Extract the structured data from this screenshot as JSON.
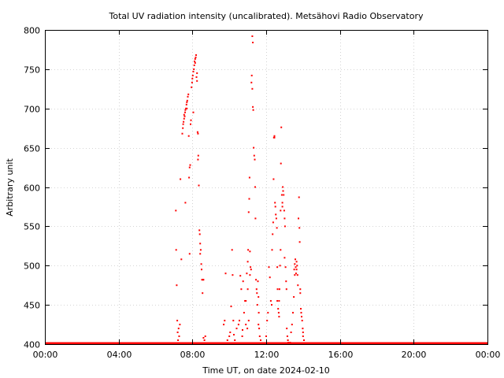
{
  "chart_data": {
    "type": "scatter",
    "title": "Total UV radiation intensity (uncalibrated). Metsähovi Radio Observatory",
    "xlabel": "Time UT, on date 2024-02-10",
    "ylabel": "Arbitrary unit",
    "xlim": [
      0,
      24
    ],
    "ylim": [
      400,
      800
    ],
    "xticks": [
      0,
      4,
      8,
      12,
      16,
      20,
      24
    ],
    "xtick_labels": [
      "00:00",
      "04:00",
      "08:00",
      "12:00",
      "16:00",
      "20:00",
      "00:00"
    ],
    "yticks": [
      400,
      450,
      500,
      550,
      600,
      650,
      700,
      750,
      800
    ],
    "ytick_labels": [
      "400",
      "450",
      "500",
      "550",
      "600",
      "650",
      "700",
      "750",
      "800"
    ],
    "grid": true,
    "color": "#ff0000",
    "baseline": {
      "value": 400,
      "x_range": [
        0,
        24
      ]
    },
    "points": [
      [
        7.1,
        570
      ],
      [
        7.12,
        520
      ],
      [
        7.15,
        475
      ],
      [
        7.18,
        430
      ],
      [
        7.2,
        415
      ],
      [
        7.22,
        405
      ],
      [
        7.25,
        420
      ],
      [
        7.28,
        410
      ],
      [
        7.32,
        425
      ],
      [
        7.35,
        610
      ],
      [
        7.4,
        508
      ],
      [
        7.45,
        668
      ],
      [
        7.48,
        675
      ],
      [
        7.5,
        680
      ],
      [
        7.52,
        683
      ],
      [
        7.55,
        687
      ],
      [
        7.58,
        690
      ],
      [
        7.6,
        695
      ],
      [
        7.62,
        698
      ],
      [
        7.65,
        700
      ],
      [
        7.68,
        705
      ],
      [
        7.7,
        708
      ],
      [
        7.72,
        710
      ],
      [
        7.75,
        715
      ],
      [
        7.78,
        718
      ],
      [
        7.8,
        665
      ],
      [
        7.82,
        612
      ],
      [
        7.85,
        625
      ],
      [
        7.88,
        628
      ],
      [
        7.9,
        680
      ],
      [
        7.92,
        685
      ],
      [
        7.95,
        727
      ],
      [
        7.98,
        733
      ],
      [
        8.0,
        738
      ],
      [
        8.02,
        742
      ],
      [
        8.05,
        747
      ],
      [
        8.08,
        750
      ],
      [
        8.1,
        755
      ],
      [
        8.12,
        760
      ],
      [
        8.15,
        763
      ],
      [
        8.18,
        765
      ],
      [
        8.2,
        768
      ],
      [
        8.22,
        740
      ],
      [
        8.25,
        735
      ],
      [
        8.28,
        670
      ],
      [
        8.3,
        635
      ],
      [
        8.32,
        640
      ],
      [
        8.35,
        602
      ],
      [
        8.38,
        545
      ],
      [
        8.4,
        540
      ],
      [
        8.42,
        528
      ],
      [
        8.45,
        520
      ],
      [
        8.48,
        502
      ],
      [
        8.5,
        495
      ],
      [
        8.52,
        482
      ],
      [
        8.55,
        465
      ],
      [
        8.58,
        482
      ],
      [
        8.6,
        482
      ],
      [
        8.65,
        405
      ],
      [
        8.7,
        410
      ],
      [
        7.7,
        700
      ],
      [
        7.85,
        515
      ],
      [
        7.55,
        692
      ],
      [
        7.62,
        580
      ],
      [
        8.05,
        695
      ],
      [
        8.15,
        758
      ],
      [
        8.25,
        745
      ],
      [
        8.3,
        668
      ],
      [
        8.42,
        515
      ],
      [
        8.6,
        408
      ],
      [
        9.7,
        425
      ],
      [
        9.75,
        430
      ],
      [
        9.8,
        490
      ],
      [
        9.9,
        405
      ],
      [
        10.0,
        410
      ],
      [
        10.05,
        415
      ],
      [
        10.1,
        448
      ],
      [
        10.15,
        520
      ],
      [
        10.18,
        488
      ],
      [
        10.22,
        430
      ],
      [
        10.25,
        412
      ],
      [
        10.3,
        405
      ],
      [
        10.4,
        420
      ],
      [
        10.5,
        425
      ],
      [
        10.55,
        430
      ],
      [
        10.6,
        487
      ],
      [
        10.65,
        470
      ],
      [
        10.7,
        410
      ],
      [
        10.72,
        418
      ],
      [
        10.75,
        480
      ],
      [
        10.8,
        440
      ],
      [
        10.85,
        455
      ],
      [
        10.9,
        425
      ],
      [
        10.95,
        490
      ],
      [
        11.0,
        505
      ],
      [
        11.02,
        520
      ],
      [
        11.05,
        568
      ],
      [
        11.08,
        585
      ],
      [
        11.1,
        612
      ],
      [
        11.12,
        518
      ],
      [
        11.15,
        498
      ],
      [
        11.18,
        495
      ],
      [
        11.2,
        733
      ],
      [
        11.22,
        742
      ],
      [
        11.25,
        725
      ],
      [
        11.28,
        702
      ],
      [
        11.3,
        698
      ],
      [
        11.32,
        650
      ],
      [
        11.35,
        640
      ],
      [
        11.38,
        635
      ],
      [
        11.4,
        600
      ],
      [
        11.42,
        560
      ],
      [
        11.45,
        482
      ],
      [
        11.48,
        470
      ],
      [
        11.5,
        465
      ],
      [
        11.52,
        450
      ],
      [
        11.55,
        480
      ],
      [
        11.58,
        460
      ],
      [
        11.6,
        440
      ],
      [
        11.65,
        410
      ],
      [
        11.7,
        405
      ],
      [
        11.25,
        792
      ],
      [
        11.28,
        784
      ],
      [
        11.12,
        488
      ],
      [
        11.0,
        470
      ],
      [
        10.9,
        455
      ],
      [
        11.05,
        430
      ],
      [
        10.98,
        420
      ],
      [
        11.58,
        425
      ],
      [
        11.62,
        420
      ],
      [
        12.0,
        410
      ],
      [
        12.05,
        430
      ],
      [
        12.1,
        440
      ],
      [
        12.15,
        498
      ],
      [
        12.2,
        485
      ],
      [
        12.25,
        455
      ],
      [
        12.3,
        450
      ],
      [
        12.32,
        520
      ],
      [
        12.35,
        540
      ],
      [
        12.38,
        555
      ],
      [
        12.4,
        610
      ],
      [
        12.42,
        663
      ],
      [
        12.45,
        665
      ],
      [
        12.48,
        580
      ],
      [
        12.5,
        575
      ],
      [
        12.52,
        565
      ],
      [
        12.55,
        560
      ],
      [
        12.58,
        548
      ],
      [
        12.6,
        498
      ],
      [
        12.62,
        470
      ],
      [
        12.65,
        445
      ],
      [
        12.68,
        440
      ],
      [
        12.7,
        455
      ],
      [
        12.72,
        470
      ],
      [
        12.75,
        500
      ],
      [
        12.78,
        570
      ],
      [
        12.8,
        630
      ],
      [
        12.82,
        676
      ],
      [
        12.85,
        590
      ],
      [
        12.88,
        580
      ],
      [
        12.9,
        600
      ],
      [
        12.92,
        595
      ],
      [
        12.95,
        590
      ],
      [
        12.98,
        570
      ],
      [
        13.0,
        560
      ],
      [
        13.02,
        550
      ],
      [
        13.05,
        498
      ],
      [
        13.08,
        480
      ],
      [
        13.1,
        470
      ],
      [
        13.12,
        420
      ],
      [
        13.15,
        410
      ],
      [
        13.18,
        405
      ],
      [
        13.2,
        402
      ],
      [
        13.25,
        400
      ],
      [
        13.3,
        402
      ],
      [
        13.35,
        415
      ],
      [
        13.4,
        425
      ],
      [
        13.45,
        440
      ],
      [
        13.5,
        460
      ],
      [
        13.52,
        495
      ],
      [
        13.55,
        502
      ],
      [
        13.58,
        508
      ],
      [
        13.6,
        498
      ],
      [
        13.62,
        490
      ],
      [
        13.65,
        505
      ],
      [
        13.68,
        500
      ],
      [
        13.7,
        488
      ],
      [
        13.72,
        475
      ],
      [
        13.75,
        560
      ],
      [
        13.78,
        587
      ],
      [
        13.8,
        548
      ],
      [
        13.82,
        530
      ],
      [
        13.85,
        470
      ],
      [
        13.88,
        445
      ],
      [
        13.9,
        440
      ],
      [
        13.92,
        435
      ],
      [
        13.95,
        430
      ],
      [
        13.98,
        420
      ],
      [
        14.0,
        410
      ],
      [
        14.05,
        405
      ],
      [
        12.45,
        663
      ],
      [
        12.6,
        455
      ],
      [
        12.7,
        435
      ],
      [
        12.78,
        520
      ],
      [
        12.88,
        575
      ],
      [
        13.0,
        510
      ],
      [
        13.55,
        488
      ],
      [
        13.65,
        495
      ],
      [
        13.85,
        465
      ],
      [
        14.0,
        415
      ]
    ]
  }
}
